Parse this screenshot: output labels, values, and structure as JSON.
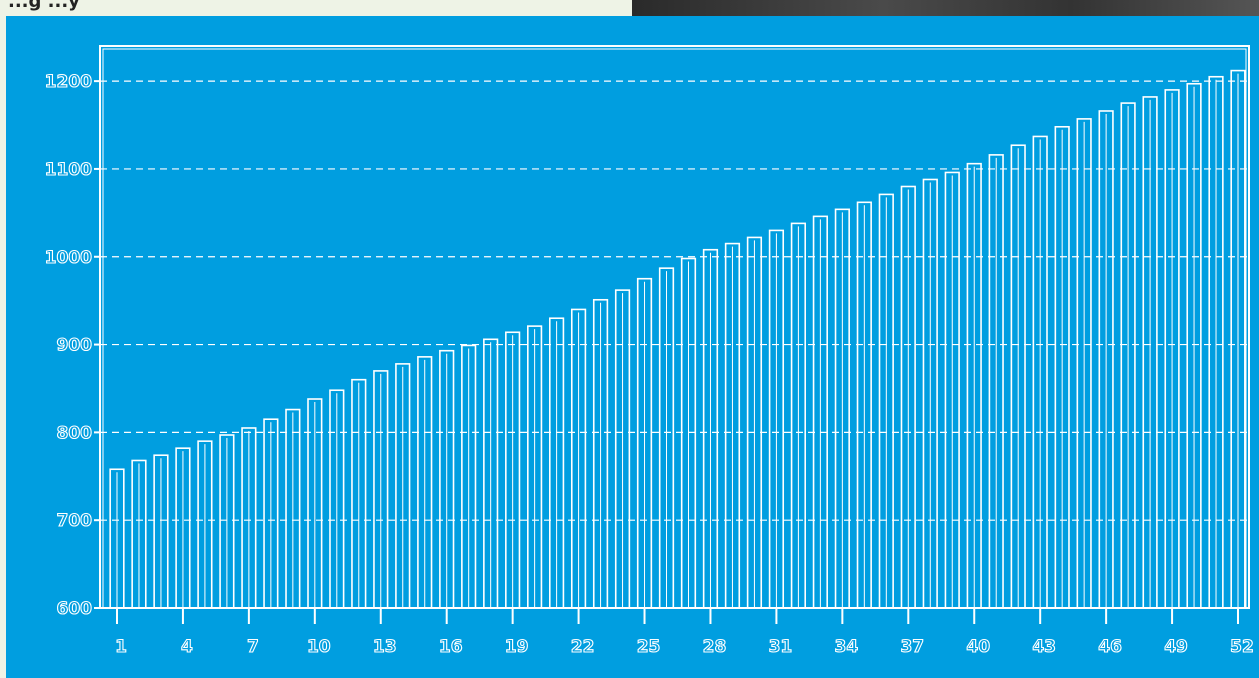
{
  "header": {
    "partial_text": "...g                        ...y"
  },
  "colors": {
    "panel_background": "#009ee0",
    "bar_outline": "#ffffff",
    "page_background": "#eef3e6"
  },
  "chart_data": {
    "type": "bar",
    "title": "",
    "xlabel": "",
    "ylabel": "",
    "ylim": [
      600,
      1240
    ],
    "yticks": [
      600,
      700,
      800,
      900,
      1000,
      1100,
      1200
    ],
    "y_tick_labels": [
      "600",
      "700",
      "800",
      "900",
      "1000",
      "1100",
      "1200"
    ],
    "x_tick_labels": [
      "1",
      "4",
      "7",
      "10",
      "13",
      "16",
      "19",
      "22",
      "25",
      "28",
      "31",
      "34",
      "37",
      "40",
      "43",
      "46",
      "49",
      "52"
    ],
    "grid": true,
    "categories": [
      "1",
      "2",
      "3",
      "4",
      "5",
      "6",
      "7",
      "8",
      "9",
      "10",
      "11",
      "12",
      "13",
      "14",
      "15",
      "16",
      "17",
      "18",
      "19",
      "20",
      "21",
      "22",
      "23",
      "24",
      "25",
      "26",
      "27",
      "28",
      "29",
      "30",
      "31",
      "32",
      "33",
      "34",
      "35",
      "36",
      "37",
      "38",
      "39",
      "40",
      "41",
      "42",
      "43",
      "44",
      "45",
      "46",
      "47",
      "48",
      "49",
      "50",
      "51",
      "52"
    ],
    "values": [
      758,
      768,
      774,
      782,
      790,
      797,
      805,
      815,
      826,
      838,
      848,
      860,
      870,
      878,
      886,
      893,
      899,
      906,
      914,
      921,
      930,
      940,
      951,
      962,
      975,
      987,
      998,
      1008,
      1015,
      1022,
      1030,
      1038,
      1046,
      1054,
      1062,
      1071,
      1080,
      1088,
      1096,
      1106,
      1116,
      1127,
      1137,
      1148,
      1157,
      1166,
      1175,
      1182,
      1190,
      1197,
      1205,
      1212
    ]
  }
}
